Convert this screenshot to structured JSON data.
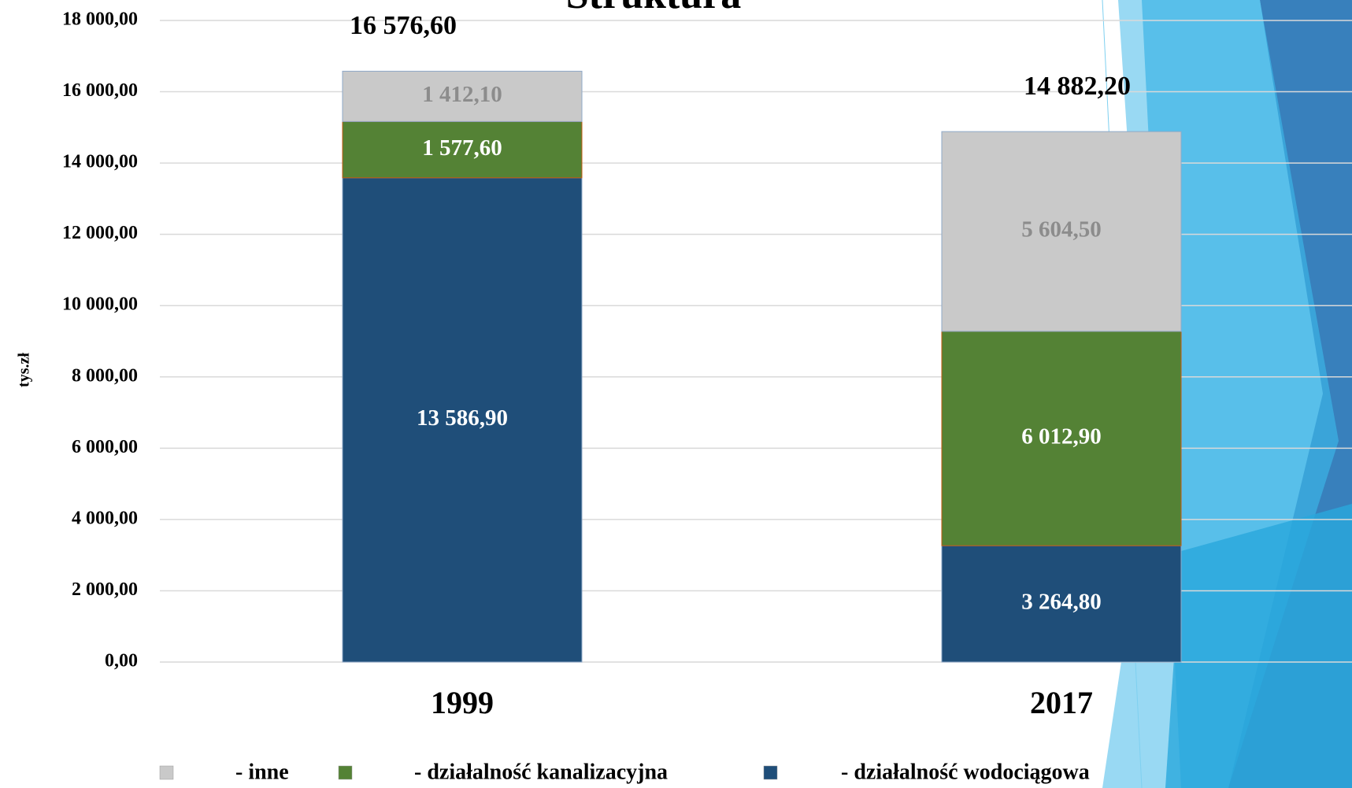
{
  "chart_data": {
    "type": "stacked_bar",
    "title": "Struktura",
    "y_label": "tys.zł",
    "categories": [
      "1999",
      "2017"
    ],
    "series": [
      {
        "name": "- działalność wodociągowa",
        "color": "#1f4e79",
        "label_color": "#ffffff",
        "values": [
          13586.9,
          3264.8
        ],
        "value_labels": [
          "13 586,90",
          "3 264,80"
        ]
      },
      {
        "name": "- działalność kanalizacyjna",
        "color": "#548235",
        "label_color": "#ffffff",
        "values": [
          1577.6,
          6012.9
        ],
        "value_labels": [
          "1 577,60",
          "6 012,90"
        ]
      },
      {
        "name": "- inne",
        "color": "#c9c9c9",
        "label_color": "#8c8c8c",
        "values": [
          1412.1,
          5604.5
        ],
        "value_labels": [
          "1 412,10",
          "5 604,50"
        ]
      }
    ],
    "totals": [
      16576.6,
      14882.2
    ],
    "total_labels": [
      "16 576,60",
      "14 882,20"
    ],
    "ylim": [
      0,
      18000
    ],
    "yticks": [
      {
        "value": 0,
        "label": "0,00"
      },
      {
        "value": 2000,
        "label": "2 000,00"
      },
      {
        "value": 4000,
        "label": "4 000,00"
      },
      {
        "value": 6000,
        "label": "6 000,00"
      },
      {
        "value": 8000,
        "label": "8 000,00"
      },
      {
        "value": 10000,
        "label": "10 000,00"
      },
      {
        "value": 12000,
        "label": "12 000,00"
      },
      {
        "value": 14000,
        "label": "14 000,00"
      },
      {
        "value": 16000,
        "label": "16 000,00"
      },
      {
        "value": 18000,
        "label": "18 000,00"
      }
    ],
    "grid": true
  }
}
